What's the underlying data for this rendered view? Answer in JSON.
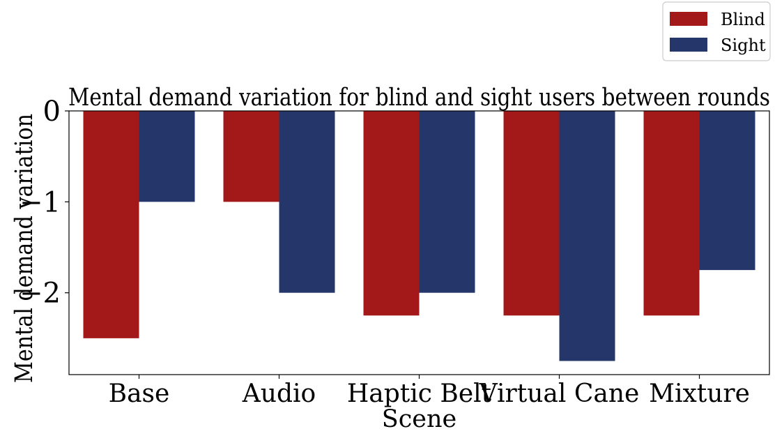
{
  "chart_data": {
    "type": "bar",
    "title": "Mental demand variation for blind and sight users between rounds",
    "xlabel": "Scene",
    "ylabel": "Mental demand variation",
    "categories": [
      "Base",
      "Audio",
      "Haptic Belt",
      "Virtual Cane",
      "Mixture"
    ],
    "series": [
      {
        "name": "Blind",
        "color": "#a31818",
        "values": [
          -2.5,
          -1.0,
          -2.25,
          -2.25,
          -2.25
        ]
      },
      {
        "name": "Sight",
        "color": "#25376a",
        "values": [
          -1.0,
          -2.0,
          -2.0,
          -2.75,
          -1.75
        ]
      }
    ],
    "ylim": [
      -2.9,
      0
    ],
    "yticks": [
      0,
      -1,
      -2
    ],
    "ytick_labels": [
      "0",
      "−1",
      "−2"
    ],
    "grid": false,
    "legend_position": "top-right, outside plot"
  }
}
